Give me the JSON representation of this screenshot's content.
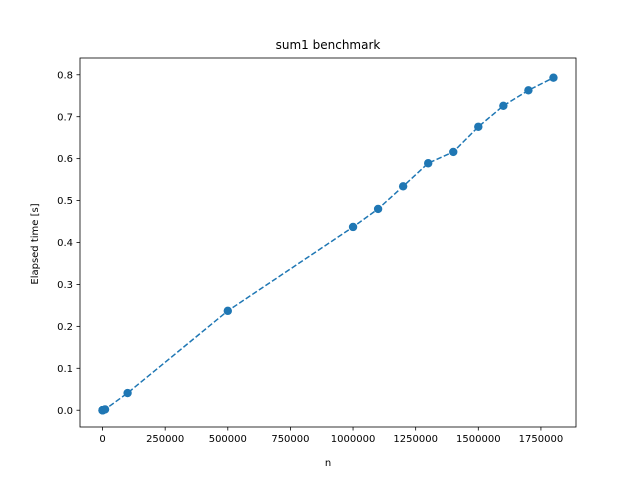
{
  "chart_data": {
    "type": "line",
    "title": "sum1 benchmark",
    "xlabel": "n",
    "ylabel": "Elapsed time [s]",
    "xlim": [
      -90000,
      1890000
    ],
    "ylim": [
      -0.04,
      0.84
    ],
    "xticks": [
      0,
      250000,
      500000,
      750000,
      1000000,
      1250000,
      1500000,
      1750000
    ],
    "xtick_labels": [
      "0",
      "250000",
      "500000",
      "750000",
      "1000000",
      "1250000",
      "1500000",
      "1750000"
    ],
    "yticks": [
      0.0,
      0.1,
      0.2,
      0.3,
      0.4,
      0.5,
      0.6,
      0.7,
      0.8
    ],
    "ytick_labels": [
      "0.0",
      "0.1",
      "0.2",
      "0.3",
      "0.4",
      "0.5",
      "0.6",
      "0.7",
      "0.8"
    ],
    "grid": false,
    "series": [
      {
        "color": "#1f77b4",
        "line_style": "dashed",
        "marker": "circle",
        "x": [
          1,
          10,
          100,
          1000,
          10000,
          100000,
          500000,
          1000000,
          1100000,
          1200000,
          1300000,
          1400000,
          1500000,
          1600000,
          1700000,
          1800000
        ],
        "y": [
          0.0,
          0.0,
          0.0,
          0.0,
          0.002,
          0.041,
          0.237,
          0.437,
          0.48,
          0.534,
          0.589,
          0.616,
          0.676,
          0.726,
          0.763,
          0.793
        ]
      }
    ]
  }
}
